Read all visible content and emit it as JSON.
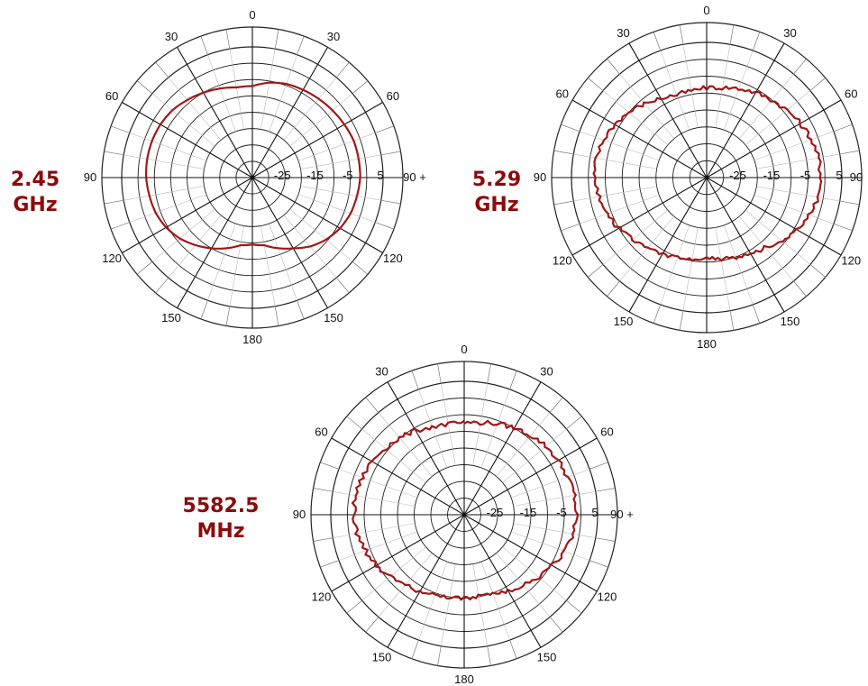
{
  "charts": [
    {
      "label_line1": "2.45",
      "label_line2": "GHz"
    },
    {
      "label_line1": "5.29",
      "label_line2": "GHz"
    },
    {
      "label_line1": "5582.5",
      "label_line2": "MHz"
    }
  ],
  "chart_data": [
    {
      "type": "line",
      "subtype": "polar",
      "title": "",
      "angle_ticks": [
        "0",
        "30",
        "60",
        "90",
        "120",
        "150",
        "180",
        "150",
        "120",
        "90",
        "60",
        "30"
      ],
      "radial_ticks": [
        "-25",
        "-15",
        "-5",
        "5"
      ],
      "radial_range": [
        -35,
        5
      ],
      "right_marker": "90 +",
      "series_color": "#a01818",
      "series": [
        {
          "angles_deg": [
            0,
            10,
            20,
            30,
            40,
            50,
            60,
            70,
            80,
            90,
            100,
            110,
            120,
            130,
            140,
            150,
            160,
            170,
            180,
            190,
            200,
            210,
            220,
            230,
            240,
            250,
            260,
            270,
            280,
            290,
            300,
            310,
            320,
            330,
            340,
            350
          ],
          "values_db": [
            -7,
            -5.5,
            -4.5,
            -4,
            -3.5,
            -3,
            -2.5,
            -2,
            -2,
            -2,
            -2.5,
            -3,
            -4,
            -5.5,
            -7.5,
            -10,
            -12,
            -14,
            -14.5,
            -14,
            -12,
            -10,
            -8,
            -6,
            -4.5,
            -3.5,
            -3,
            -2.5,
            -2.3,
            -2.3,
            -2.5,
            -3,
            -4,
            -5,
            -6,
            -7
          ]
        }
      ]
    },
    {
      "type": "line",
      "subtype": "polar",
      "title": "",
      "angle_ticks": [
        "0",
        "30",
        "60",
        "90",
        "120",
        "150",
        "180",
        "150",
        "120",
        "90",
        "60",
        "30"
      ],
      "radial_ticks": [
        "-25",
        "-15",
        "-5",
        "5"
      ],
      "radial_range": [
        -35,
        5
      ],
      "right_marker": "90",
      "series_color": "#a01818",
      "series": [
        {
          "angles_deg": [
            0,
            10,
            20,
            30,
            40,
            50,
            60,
            70,
            80,
            90,
            100,
            110,
            120,
            130,
            140,
            150,
            160,
            170,
            180,
            190,
            200,
            210,
            220,
            230,
            240,
            250,
            260,
            270,
            280,
            290,
            300,
            310,
            320,
            330,
            340,
            350
          ],
          "values_db": [
            -8.5,
            -8,
            -7,
            -6,
            -5,
            -4,
            -3,
            -2,
            -1.5,
            -1,
            -1.5,
            -2.5,
            -4,
            -6,
            -8,
            -9,
            -10,
            -10.5,
            -11,
            -10.5,
            -10,
            -9,
            -8,
            -6.5,
            -5,
            -3.5,
            -2.5,
            -2,
            -2,
            -2.5,
            -3.5,
            -5,
            -6.5,
            -8,
            -9,
            -9
          ]
        }
      ]
    },
    {
      "type": "line",
      "subtype": "polar",
      "title": "",
      "angle_ticks": [
        "0",
        "30",
        "60",
        "90",
        "120",
        "150",
        "180",
        "150",
        "120",
        "90",
        "60",
        "30"
      ],
      "radial_ticks": [
        "-25",
        "-15",
        "-5",
        "5"
      ],
      "radial_range": [
        -35,
        5
      ],
      "right_marker": "90 +",
      "series_color": "#a01818",
      "series": [
        {
          "angles_deg": [
            0,
            10,
            20,
            30,
            40,
            50,
            60,
            70,
            80,
            90,
            100,
            110,
            120,
            130,
            140,
            150,
            160,
            170,
            180,
            190,
            200,
            210,
            220,
            230,
            240,
            250,
            260,
            270,
            280,
            290,
            300,
            310,
            320,
            330,
            340,
            350
          ],
          "values_db": [
            -7.5,
            -7,
            -6,
            -5,
            -4,
            -3,
            -2.5,
            -2,
            -1.5,
            -1.5,
            -2,
            -3,
            -4.5,
            -6,
            -7.5,
            -8.5,
            -9.5,
            -10,
            -10,
            -10,
            -9.5,
            -8.5,
            -7.5,
            -6,
            -4.5,
            -3.5,
            -2.5,
            -2,
            -2,
            -2.5,
            -3,
            -4,
            -5,
            -6,
            -7,
            -7.5
          ]
        }
      ]
    }
  ]
}
